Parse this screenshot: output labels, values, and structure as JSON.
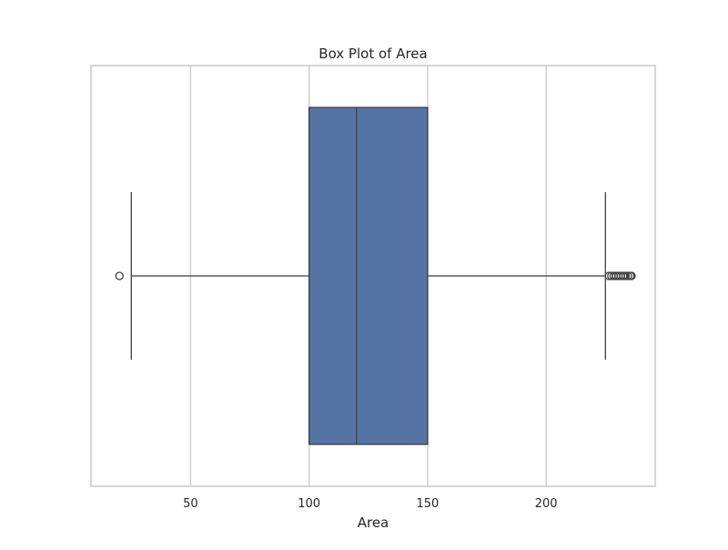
{
  "chart_data": {
    "type": "box",
    "title": "Box Plot of Area",
    "xlabel": "Area",
    "ylabel": "",
    "xlim": [
      8,
      246
    ],
    "xticks": [
      50,
      100,
      150,
      200
    ],
    "xtick_labels": [
      "50",
      "100",
      "150",
      "200"
    ],
    "grid": true,
    "box_color": "#5574a5",
    "line_color": "#3f3f3f",
    "series": [
      {
        "name": "Area",
        "whisker_low": 25,
        "q1": 100,
        "median": 120,
        "q3": 150,
        "whisker_high": 225,
        "outliers": [
          20,
          226.5,
          227.5,
          228.5,
          229.5,
          230.5,
          231.5,
          232.5,
          233.5,
          234.5,
          235.5,
          236
        ]
      }
    ]
  }
}
